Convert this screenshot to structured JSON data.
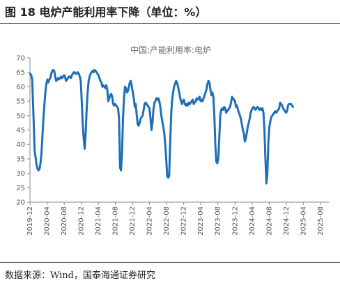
{
  "figure": {
    "title": "图 18 电炉产能利用率下降（单位：%）",
    "source": "数据来源：Wind，国泰海通证券研究"
  },
  "chart_data": {
    "type": "line",
    "title": "中国:产能利用率:电炉",
    "ylim": [
      20,
      70
    ],
    "yticks": [
      20,
      25,
      30,
      35,
      40,
      45,
      50,
      55,
      60,
      65,
      70
    ],
    "xticks": [
      "2019-12",
      "2020-04",
      "2020-08",
      "2020-12",
      "2021-04",
      "2021-08",
      "2021-12",
      "2022-04",
      "2022-08",
      "2022-12",
      "2023-04",
      "2023-08",
      "2023-12",
      "2024-04",
      "2024-08",
      "2024-12",
      "2025-04",
      "2025-08"
    ],
    "xrange": [
      "2019-12-01",
      "2025-09-30"
    ],
    "grid": false,
    "color": "#1d6fb8",
    "series": [
      {
        "name": "中国:产能利用率:电炉",
        "points": [
          [
            "2019-12-03",
            64.5
          ],
          [
            "2019-12-10",
            64.0
          ],
          [
            "2019-12-17",
            62.5
          ],
          [
            "2019-12-26",
            50.0
          ],
          [
            "2020-01-03",
            38.0
          ],
          [
            "2020-01-10",
            35.5
          ],
          [
            "2020-01-17",
            33.0
          ],
          [
            "2020-01-24",
            31.5
          ],
          [
            "2020-01-31",
            31.0
          ],
          [
            "2020-02-07",
            31.5
          ],
          [
            "2020-02-14",
            33.5
          ],
          [
            "2020-02-21",
            37.0
          ],
          [
            "2020-02-28",
            43.0
          ],
          [
            "2020-03-06",
            49.0
          ],
          [
            "2020-03-13",
            54.0
          ],
          [
            "2020-03-20",
            58.0
          ],
          [
            "2020-03-27",
            61.0
          ],
          [
            "2020-04-03",
            62.5
          ],
          [
            "2020-04-10",
            61.5
          ],
          [
            "2020-04-17",
            62.5
          ],
          [
            "2020-04-24",
            63.0
          ],
          [
            "2020-05-01",
            64.5
          ],
          [
            "2020-05-08",
            65.5
          ],
          [
            "2020-05-15",
            65.8
          ],
          [
            "2020-05-22",
            65.5
          ],
          [
            "2020-05-29",
            63.5
          ],
          [
            "2020-06-05",
            62.0
          ],
          [
            "2020-06-12",
            62.5
          ],
          [
            "2020-06-19",
            63.0
          ],
          [
            "2020-06-26",
            62.5
          ],
          [
            "2020-07-03",
            63.0
          ],
          [
            "2020-07-10",
            63.5
          ],
          [
            "2020-07-17",
            63.0
          ],
          [
            "2020-07-24",
            63.5
          ],
          [
            "2020-07-31",
            64.0
          ],
          [
            "2020-08-07",
            63.5
          ],
          [
            "2020-08-14",
            62.0
          ],
          [
            "2020-08-21",
            62.5
          ],
          [
            "2020-08-28",
            63.0
          ],
          [
            "2020-09-04",
            63.5
          ],
          [
            "2020-09-11",
            63.5
          ],
          [
            "2020-09-18",
            63.0
          ],
          [
            "2020-09-25",
            64.0
          ],
          [
            "2020-10-02",
            64.5
          ],
          [
            "2020-10-09",
            65.0
          ],
          [
            "2020-10-16",
            65.0
          ],
          [
            "2020-10-23",
            64.5
          ],
          [
            "2020-10-30",
            64.5
          ],
          [
            "2020-11-06",
            65.0
          ],
          [
            "2020-11-13",
            64.5
          ],
          [
            "2020-11-20",
            63.5
          ],
          [
            "2020-11-27",
            62.0
          ],
          [
            "2020-12-04",
            55.0
          ],
          [
            "2020-12-11",
            47.0
          ],
          [
            "2020-12-18",
            42.0
          ],
          [
            "2020-12-25",
            38.5
          ],
          [
            "2021-01-01",
            44.0
          ],
          [
            "2021-01-08",
            52.0
          ],
          [
            "2021-01-15",
            58.0
          ],
          [
            "2021-01-22",
            62.0
          ],
          [
            "2021-01-29",
            63.5
          ],
          [
            "2021-02-05",
            64.5
          ],
          [
            "2021-02-12",
            65.0
          ],
          [
            "2021-02-19",
            65.5
          ],
          [
            "2021-02-26",
            65.0
          ],
          [
            "2021-03-05",
            65.8
          ],
          [
            "2021-03-12",
            65.5
          ],
          [
            "2021-03-19",
            65.0
          ],
          [
            "2021-03-26",
            64.5
          ],
          [
            "2021-04-02",
            64.0
          ],
          [
            "2021-04-09",
            63.0
          ],
          [
            "2021-04-16",
            62.0
          ],
          [
            "2021-04-23",
            61.5
          ],
          [
            "2021-04-30",
            60.0
          ],
          [
            "2021-05-07",
            60.5
          ],
          [
            "2021-05-14",
            60.0
          ],
          [
            "2021-05-21",
            59.5
          ],
          [
            "2021-05-28",
            60.5
          ],
          [
            "2021-06-04",
            59.0
          ],
          [
            "2021-06-11",
            55.0
          ],
          [
            "2021-06-18",
            56.0
          ],
          [
            "2021-06-25",
            57.0
          ],
          [
            "2021-07-02",
            57.5
          ],
          [
            "2021-07-09",
            56.5
          ],
          [
            "2021-07-16",
            54.0
          ],
          [
            "2021-07-23",
            53.5
          ],
          [
            "2021-07-30",
            54.0
          ],
          [
            "2021-08-06",
            53.5
          ],
          [
            "2021-08-13",
            53.0
          ],
          [
            "2021-08-20",
            52.5
          ],
          [
            "2021-08-27",
            49.0
          ],
          [
            "2021-09-03",
            32.0
          ],
          [
            "2021-09-10",
            31.0
          ],
          [
            "2021-09-17",
            37.0
          ],
          [
            "2021-09-24",
            49.0
          ],
          [
            "2021-10-01",
            56.0
          ],
          [
            "2021-10-08",
            60.0
          ],
          [
            "2021-10-15",
            59.5
          ],
          [
            "2021-10-22",
            58.0
          ],
          [
            "2021-10-29",
            58.5
          ],
          [
            "2021-11-05",
            60.0
          ],
          [
            "2021-11-12",
            61.5
          ],
          [
            "2021-11-19",
            62.0
          ],
          [
            "2021-11-26",
            60.0
          ],
          [
            "2021-12-03",
            58.0
          ],
          [
            "2021-12-10",
            56.0
          ],
          [
            "2021-12-17",
            53.0
          ],
          [
            "2021-12-24",
            54.0
          ],
          [
            "2021-12-31",
            50.0
          ],
          [
            "2022-01-07",
            47.0
          ],
          [
            "2022-01-14",
            46.5
          ],
          [
            "2022-01-21",
            47.5
          ],
          [
            "2022-01-28",
            49.0
          ],
          [
            "2022-02-04",
            49.5
          ],
          [
            "2022-02-11",
            50.0
          ],
          [
            "2022-02-18",
            52.0
          ],
          [
            "2022-02-25",
            54.0
          ],
          [
            "2022-03-04",
            54.5
          ],
          [
            "2022-03-11",
            54.0
          ],
          [
            "2022-03-18",
            53.5
          ],
          [
            "2022-03-25",
            53.0
          ],
          [
            "2022-04-01",
            52.5
          ],
          [
            "2022-04-08",
            49.0
          ],
          [
            "2022-04-15",
            45.0
          ],
          [
            "2022-04-22",
            47.5
          ],
          [
            "2022-04-29",
            52.0
          ],
          [
            "2022-05-06",
            54.5
          ],
          [
            "2022-05-13",
            55.0
          ],
          [
            "2022-05-20",
            56.0
          ],
          [
            "2022-05-27",
            55.5
          ],
          [
            "2022-06-03",
            56.0
          ],
          [
            "2022-06-10",
            55.0
          ],
          [
            "2022-06-17",
            53.0
          ],
          [
            "2022-06-24",
            50.0
          ],
          [
            "2022-07-01",
            48.0
          ],
          [
            "2022-07-08",
            46.0
          ],
          [
            "2022-07-15",
            44.0
          ],
          [
            "2022-07-22",
            40.0
          ],
          [
            "2022-07-29",
            35.0
          ],
          [
            "2022-08-05",
            29.0
          ],
          [
            "2022-08-12",
            28.5
          ],
          [
            "2022-08-19",
            29.0
          ],
          [
            "2022-08-26",
            40.0
          ],
          [
            "2022-09-02",
            50.0
          ],
          [
            "2022-09-09",
            55.5
          ],
          [
            "2022-09-16",
            58.0
          ],
          [
            "2022-09-23",
            60.0
          ],
          [
            "2022-09-30",
            61.0
          ],
          [
            "2022-10-07",
            62.0
          ],
          [
            "2022-10-14",
            61.5
          ],
          [
            "2022-10-21",
            60.0
          ],
          [
            "2022-10-28",
            58.5
          ],
          [
            "2022-11-04",
            56.5
          ],
          [
            "2022-11-11",
            55.0
          ],
          [
            "2022-11-18",
            54.0
          ],
          [
            "2022-11-25",
            55.0
          ],
          [
            "2022-12-02",
            55.5
          ],
          [
            "2022-12-09",
            54.0
          ],
          [
            "2022-12-16",
            53.5
          ],
          [
            "2022-12-23",
            54.0
          ],
          [
            "2022-12-30",
            53.5
          ],
          [
            "2023-01-06",
            54.5
          ],
          [
            "2023-01-13",
            54.0
          ],
          [
            "2023-01-20",
            54.5
          ],
          [
            "2023-01-27",
            55.0
          ],
          [
            "2023-02-03",
            55.5
          ],
          [
            "2023-02-10",
            54.0
          ],
          [
            "2023-02-17",
            54.5
          ],
          [
            "2023-02-24",
            55.0
          ],
          [
            "2023-03-03",
            56.0
          ],
          [
            "2023-03-10",
            55.5
          ],
          [
            "2023-03-17",
            56.0
          ],
          [
            "2023-03-24",
            56.5
          ],
          [
            "2023-03-31",
            55.0
          ],
          [
            "2023-04-07",
            55.5
          ],
          [
            "2023-04-14",
            55.0
          ],
          [
            "2023-04-21",
            56.0
          ],
          [
            "2023-04-28",
            57.0
          ],
          [
            "2023-05-05",
            58.0
          ],
          [
            "2023-05-12",
            59.0
          ],
          [
            "2023-05-19",
            61.0
          ],
          [
            "2023-05-26",
            62.0
          ],
          [
            "2023-06-02",
            61.5
          ],
          [
            "2023-06-09",
            59.0
          ],
          [
            "2023-06-16",
            57.0
          ],
          [
            "2023-06-23",
            58.0
          ],
          [
            "2023-06-30",
            56.5
          ],
          [
            "2023-07-07",
            50.0
          ],
          [
            "2023-07-14",
            40.0
          ],
          [
            "2023-07-21",
            34.0
          ],
          [
            "2023-07-28",
            33.5
          ],
          [
            "2023-08-04",
            35.0
          ],
          [
            "2023-08-11",
            42.0
          ],
          [
            "2023-08-18",
            50.0
          ],
          [
            "2023-08-25",
            52.0
          ],
          [
            "2023-09-01",
            52.5
          ],
          [
            "2023-09-08",
            52.0
          ],
          [
            "2023-09-15",
            53.0
          ],
          [
            "2023-09-22",
            52.5
          ],
          [
            "2023-09-29",
            51.0
          ],
          [
            "2023-10-06",
            51.5
          ],
          [
            "2023-10-13",
            52.0
          ],
          [
            "2023-10-20",
            52.5
          ],
          [
            "2023-10-27",
            53.0
          ],
          [
            "2023-11-03",
            54.5
          ],
          [
            "2023-11-10",
            56.5
          ],
          [
            "2023-11-17",
            56.0
          ],
          [
            "2023-11-24",
            55.5
          ],
          [
            "2023-12-01",
            55.0
          ],
          [
            "2023-12-08",
            53.0
          ],
          [
            "2023-12-15",
            53.5
          ],
          [
            "2023-12-22",
            52.0
          ],
          [
            "2023-12-29",
            51.0
          ],
          [
            "2024-01-05",
            50.0
          ],
          [
            "2024-01-12",
            49.0
          ],
          [
            "2024-01-19",
            47.0
          ],
          [
            "2024-01-26",
            45.0
          ],
          [
            "2024-02-02",
            44.0
          ],
          [
            "2024-02-09",
            41.0
          ],
          [
            "2024-02-16",
            42.0
          ],
          [
            "2024-02-23",
            44.0
          ],
          [
            "2024-03-01",
            46.0
          ],
          [
            "2024-03-08",
            47.5
          ],
          [
            "2024-03-15",
            49.0
          ],
          [
            "2024-03-22",
            51.0
          ],
          [
            "2024-03-29",
            52.0
          ],
          [
            "2024-04-05",
            52.5
          ],
          [
            "2024-04-12",
            53.0
          ],
          [
            "2024-04-19",
            52.5
          ],
          [
            "2024-04-26",
            52.0
          ],
          [
            "2024-05-03",
            52.5
          ],
          [
            "2024-05-10",
            53.0
          ],
          [
            "2024-05-17",
            52.5
          ],
          [
            "2024-05-24",
            52.0
          ],
          [
            "2024-05-31",
            52.5
          ],
          [
            "2024-06-07",
            52.0
          ],
          [
            "2024-06-14",
            52.5
          ],
          [
            "2024-06-21",
            51.0
          ],
          [
            "2024-06-28",
            45.0
          ],
          [
            "2024-07-05",
            35.0
          ],
          [
            "2024-07-12",
            26.5
          ],
          [
            "2024-07-19",
            30.0
          ],
          [
            "2024-07-26",
            41.0
          ],
          [
            "2024-08-02",
            46.0
          ],
          [
            "2024-08-09",
            48.0
          ],
          [
            "2024-08-16",
            49.5
          ],
          [
            "2024-08-23",
            50.0
          ],
          [
            "2024-08-30",
            50.5
          ],
          [
            "2024-09-06",
            51.0
          ],
          [
            "2024-09-13",
            51.5
          ],
          [
            "2024-09-20",
            51.0
          ],
          [
            "2024-09-27",
            51.5
          ],
          [
            "2024-10-04",
            52.0
          ],
          [
            "2024-10-11",
            52.5
          ],
          [
            "2024-10-18",
            54.5
          ],
          [
            "2024-10-25",
            54.0
          ],
          [
            "2024-11-01",
            53.5
          ],
          [
            "2024-11-08",
            52.5
          ],
          [
            "2024-11-15",
            52.0
          ],
          [
            "2024-11-22",
            51.5
          ],
          [
            "2024-11-29",
            51.0
          ],
          [
            "2024-12-06",
            51.5
          ],
          [
            "2024-12-13",
            53.5
          ],
          [
            "2024-12-20",
            54.0
          ],
          [
            "2024-12-27",
            54.0
          ],
          [
            "2025-01-03",
            54.0
          ],
          [
            "2025-01-10",
            53.5
          ],
          [
            "2025-01-17",
            53.0
          ]
        ]
      }
    ]
  }
}
